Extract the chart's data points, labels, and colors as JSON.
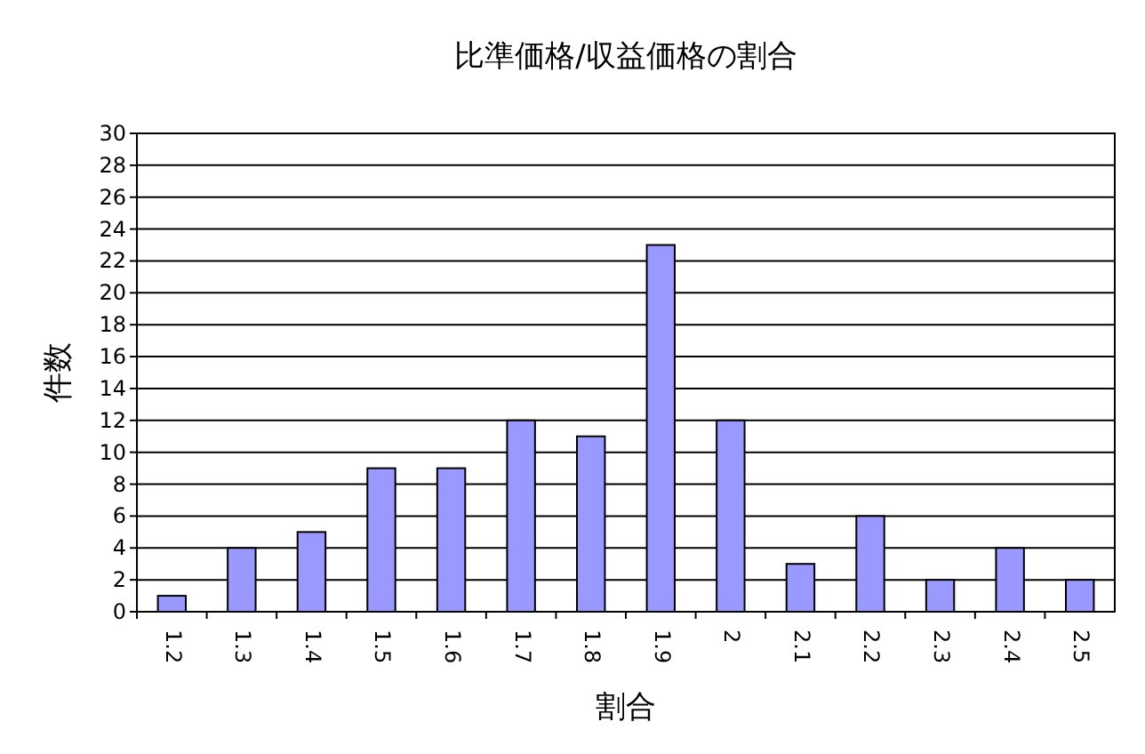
{
  "chart_data": {
    "type": "bar",
    "title": "比準価格/収益価格の割合",
    "xlabel": "割合",
    "ylabel": "件数",
    "categories": [
      "1.2",
      "1.3",
      "1.4",
      "1.5",
      "1.6",
      "1.7",
      "1.8",
      "1.9",
      "2",
      "2.1",
      "2.2",
      "2.3",
      "2.4",
      "2.5"
    ],
    "values": [
      1,
      4,
      5,
      9,
      9,
      12,
      11,
      23,
      12,
      3,
      6,
      2,
      4,
      2
    ],
    "color": "#9999ff",
    "ylim": [
      0,
      30
    ],
    "yticks": [
      0,
      2,
      4,
      6,
      8,
      10,
      12,
      14,
      16,
      18,
      20,
      22,
      24,
      26,
      28,
      30
    ],
    "grid": "y"
  }
}
